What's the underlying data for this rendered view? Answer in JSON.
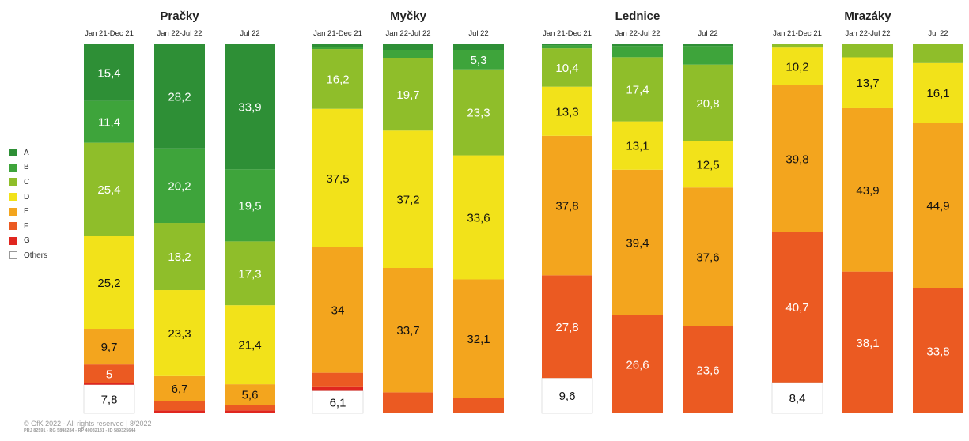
{
  "chart_data": {
    "type": "bar",
    "stacked": true,
    "normalized": true,
    "series_order_bottom_to_top": [
      "Others",
      "G",
      "F",
      "E",
      "D",
      "C",
      "B",
      "A"
    ],
    "legend": [
      "A",
      "B",
      "C",
      "D",
      "E",
      "F",
      "G",
      "Others"
    ],
    "colors": {
      "A": "#2e8f36",
      "B": "#3ea43b",
      "C": "#8fbe2a",
      "D": "#f2e21a",
      "E": "#f3a51e",
      "F": "#eb5a22",
      "G": "#e0261f",
      "Others": "#ffffff"
    },
    "groups": [
      {
        "title": "Pračky",
        "bars": [
          {
            "label": "Jan 21-Dec 21",
            "values": {
              "A": 15.4,
              "B": 11.4,
              "C": 25.4,
              "D": 25.2,
              "E": 9.7,
              "F": 5.0,
              "G": 0.5,
              "Others": 7.8
            },
            "labels": {
              "A": "15,4",
              "B": "11,4",
              "C": "25,4",
              "D": "25,2",
              "E": "9,7",
              "F": "5",
              "Others": "7,8"
            }
          },
          {
            "label": "Jan 22-Jul 22",
            "values": {
              "A": 28.2,
              "B": 20.2,
              "C": 18.2,
              "D": 23.3,
              "E": 6.7,
              "F": 2.6,
              "G": 0.8,
              "Others": 0
            },
            "labels": {
              "A": "28,2",
              "B": "20,2",
              "C": "18,2",
              "D": "23,3",
              "E": "6,7"
            }
          },
          {
            "label": "Jul 22",
            "values": {
              "A": 33.9,
              "B": 19.5,
              "C": 17.3,
              "D": 21.4,
              "E": 5.6,
              "F": 1.5,
              "G": 0.8,
              "Others": 0
            },
            "labels": {
              "A": "33,9",
              "B": "19,5",
              "C": "17,3",
              "D": "21,4",
              "E": "5,6"
            }
          }
        ]
      },
      {
        "title": "Myčky",
        "bars": [
          {
            "label": "Jan 21-Dec 21",
            "values": {
              "A": 0.8,
              "B": 0.5,
              "C": 16.2,
              "D": 37.5,
              "E": 34.0,
              "F": 3.9,
              "G": 1.0,
              "Others": 6.1
            },
            "labels": {
              "C": "16,2",
              "D": "37,5",
              "E": "34",
              "Others": "6,1"
            }
          },
          {
            "label": "Jan 22-Jul 22",
            "values": {
              "A": 1.5,
              "B": 2.2,
              "C": 19.7,
              "D": 37.2,
              "E": 33.7,
              "F": 5.7,
              "G": 0,
              "Others": 0
            },
            "labels": {
              "C": "19,7",
              "D": "37,2",
              "E": "33,7"
            }
          },
          {
            "label": "Jul 22",
            "values": {
              "A": 1.5,
              "B": 5.3,
              "C": 23.3,
              "D": 33.6,
              "E": 32.1,
              "F": 4.2,
              "G": 0,
              "Others": 0
            },
            "labels": {
              "B": "5,3",
              "C": "23,3",
              "D": "33,6",
              "E": "32,1"
            }
          }
        ]
      },
      {
        "title": "Lednice",
        "bars": [
          {
            "label": "Jan 21-Dec 21",
            "values": {
              "A": 0.3,
              "B": 0.8,
              "C": 10.4,
              "D": 13.3,
              "E": 37.8,
              "F": 27.8,
              "G": 0,
              "Others": 9.6
            },
            "labels": {
              "C": "10,4",
              "D": "13,3",
              "E": "37,8",
              "F": "27,8",
              "Others": "9,6"
            }
          },
          {
            "label": "Jan 22-Jul 22",
            "values": {
              "A": 0.5,
              "B": 3.0,
              "C": 17.4,
              "D": 13.1,
              "E": 39.4,
              "F": 26.6,
              "G": 0,
              "Others": 0
            },
            "labels": {
              "C": "17,4",
              "D": "13,1",
              "E": "39,4",
              "F": "26,6"
            }
          },
          {
            "label": "Jul 22",
            "values": {
              "A": 0.5,
              "B": 5.0,
              "C": 20.8,
              "D": 12.5,
              "E": 37.6,
              "F": 23.6,
              "G": 0,
              "Others": 0
            },
            "labels": {
              "C": "20,8",
              "D": "12,5",
              "E": "37,6",
              "F": "23,6"
            }
          }
        ]
      },
      {
        "title": "Mrazáky",
        "bars": [
          {
            "label": "Jan 21-Dec 21",
            "values": {
              "A": 0,
              "B": 0,
              "C": 0.9,
              "D": 10.2,
              "E": 39.8,
              "F": 40.7,
              "G": 0,
              "Others": 8.4
            },
            "labels": {
              "D": "10,2",
              "E": "39,8",
              "F": "40,7",
              "Others": "8,4"
            }
          },
          {
            "label": "Jan 22-Jul 22",
            "values": {
              "A": 0,
              "B": 0,
              "C": 3.5,
              "D": 13.7,
              "E": 43.9,
              "F": 38.1,
              "G": 0,
              "Others": 0
            },
            "labels": {
              "D": "13,7",
              "E": "43,9",
              "F": "38,1"
            }
          },
          {
            "label": "Jul 22",
            "values": {
              "A": 0,
              "B": 0,
              "C": 5.1,
              "D": 16.1,
              "E": 44.9,
              "F": 33.8,
              "G": 0,
              "Others": 0
            },
            "labels": {
              "D": "16,1",
              "E": "44,9",
              "F": "33,8"
            }
          }
        ]
      }
    ]
  },
  "footer": {
    "copyright": "© GfK 2022 - All rights reserved | 8/2022",
    "ids": "PRJ 82591 - RG 5848284 - RP 40032131 - ID 589325644"
  }
}
